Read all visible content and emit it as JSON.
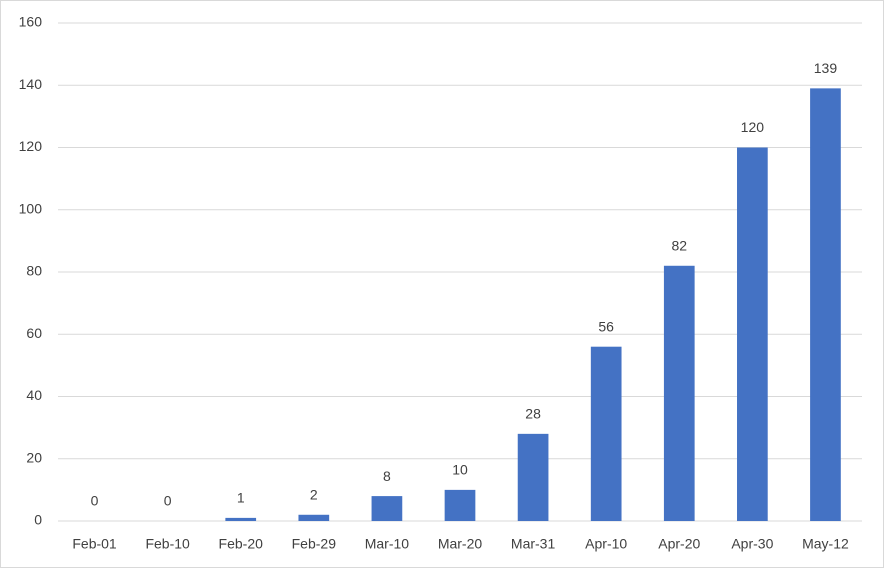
{
  "chart_data": {
    "type": "bar",
    "categories": [
      "Feb-01",
      "Feb-10",
      "Feb-20",
      "Feb-29",
      "Mar-10",
      "Mar-20",
      "Mar-31",
      "Apr-10",
      "Apr-20",
      "Apr-30",
      "May-12"
    ],
    "values": [
      0,
      0,
      1,
      2,
      8,
      10,
      28,
      56,
      82,
      120,
      139
    ],
    "color": "#4472c4",
    "ylim": [
      0,
      160
    ],
    "yticks": [
      0,
      20,
      40,
      60,
      80,
      100,
      120,
      140,
      160
    ],
    "grid": true
  }
}
